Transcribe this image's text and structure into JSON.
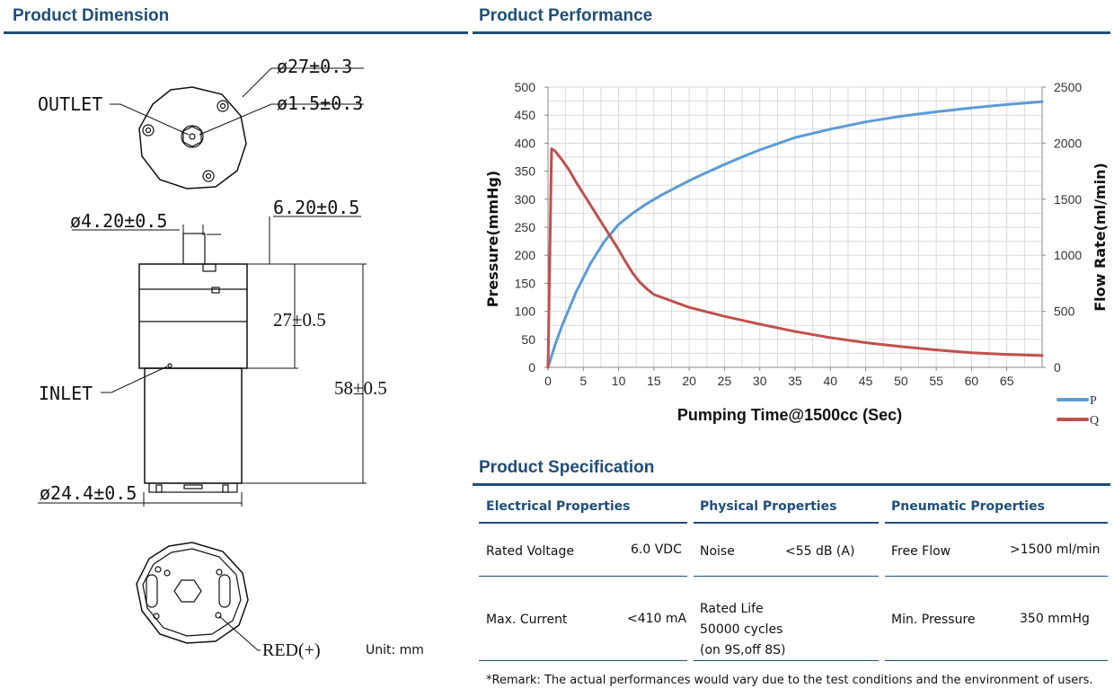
{
  "dimension": {
    "title": "Product Dimension",
    "labels": {
      "d27": "ø27±0.3",
      "outlet": "OUTLET",
      "d15": "ø1.5±0.3",
      "d420": "ø4.20±0.5",
      "w620": "6.20±0.5",
      "h27": "27±0.5",
      "inlet": "INLET",
      "h58": "58±0.5",
      "d244": "ø24.4±0.5",
      "red": "RED(+)"
    },
    "unit": "Unit: mm"
  },
  "performance": {
    "title": "Product Performance"
  },
  "chart_data": {
    "type": "line",
    "xlabel": "Pumping Time@1500cc (Sec)",
    "ylabel": "Pressure(mmHg)",
    "y2label": "Flow Rate(ml/min)",
    "xlim": [
      0,
      70
    ],
    "ylim": [
      0,
      500
    ],
    "y2lim": [
      0,
      2500
    ],
    "x_ticks": [
      "0",
      "5",
      "10",
      "15",
      "20",
      "25",
      "30",
      "35",
      "40",
      "45",
      "50",
      "55",
      "60",
      "65"
    ],
    "y_ticks": [
      "0",
      "50",
      "100",
      "150",
      "200",
      "250",
      "300",
      "350",
      "400",
      "450",
      "500"
    ],
    "y2_ticks": [
      "0",
      "500",
      "1000",
      "1500",
      "2000",
      "2500"
    ],
    "grid": true,
    "legend_position": "bottom-right",
    "series": [
      {
        "name": "P",
        "axis": "left",
        "color": "#5b9bd5",
        "x": [
          0,
          1,
          2,
          3,
          4,
          5,
          6,
          7,
          8,
          9,
          10,
          12,
          14,
          16,
          18,
          20,
          22,
          25,
          28,
          30,
          35,
          40,
          45,
          50,
          55,
          60,
          65,
          70
        ],
        "y": [
          0,
          40,
          75,
          105,
          135,
          160,
          185,
          205,
          225,
          240,
          255,
          275,
          292,
          307,
          320,
          333,
          345,
          362,
          378,
          388,
          410,
          425,
          438,
          448,
          456,
          463,
          469,
          474
        ]
      },
      {
        "name": "Q",
        "axis": "right",
        "color": "#c0504d",
        "x": [
          0,
          0.5,
          1,
          2,
          3,
          4,
          5,
          6,
          7,
          8,
          9,
          10,
          11,
          12,
          13,
          14,
          15,
          20,
          25,
          30,
          35,
          40,
          45,
          50,
          55,
          60,
          65,
          70
        ],
        "y": [
          0,
          1950,
          1930,
          1850,
          1760,
          1650,
          1550,
          1450,
          1350,
          1250,
          1150,
          1050,
          940,
          840,
          760,
          700,
          650,
          535,
          455,
          385,
          320,
          265,
          220,
          185,
          155,
          130,
          115,
          105
        ]
      }
    ]
  },
  "specification": {
    "title": "Product Specification",
    "columns": [
      {
        "title": "Electrical Properties"
      },
      {
        "title": "Physical Properties"
      },
      {
        "title": "Pneumatic Properties"
      }
    ],
    "rated_voltage_label": "Rated Voltage",
    "rated_voltage_value": "6.0 VDC",
    "max_current_label": "Max. Current",
    "max_current_value": "<410 mA",
    "noise_label": "Noise",
    "noise_value": "<55 dB (A)",
    "rated_life_label": "Rated Life",
    "rated_life_value": "50000 cycles",
    "rated_life_note": "(on 9S,off 8S)",
    "free_flow_label": "Free Flow",
    "free_flow_value": ">1500 ml/min",
    "min_pressure_label": "Min. Pressure",
    "min_pressure_value": "350 mmHg",
    "remark": "*Remark: The actual performances would vary due to the test conditions and the environment of users."
  }
}
